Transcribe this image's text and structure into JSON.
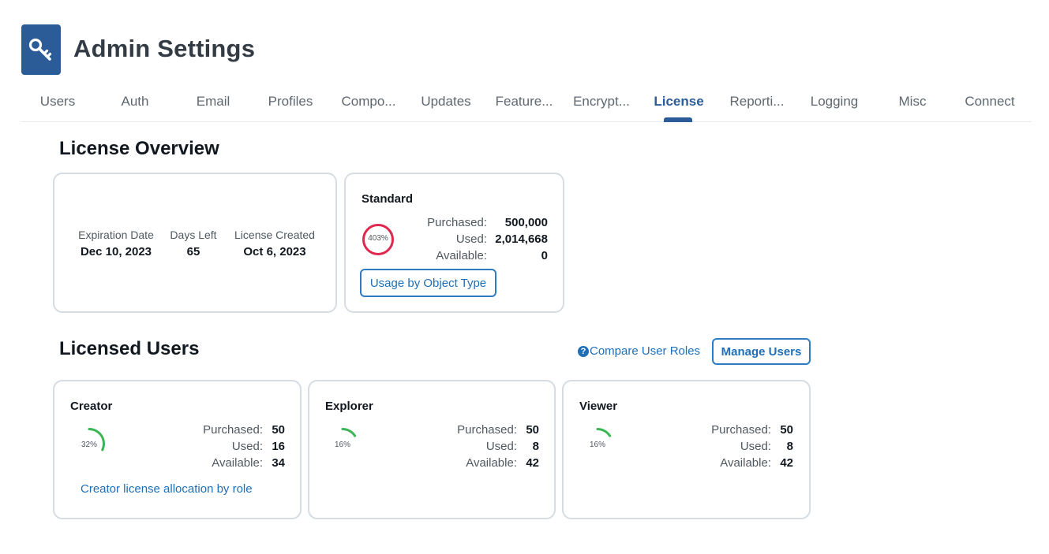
{
  "header": {
    "title": "Admin Settings",
    "icon": "key-icon"
  },
  "tabs": [
    {
      "label": "Users",
      "active": false
    },
    {
      "label": "Auth",
      "active": false
    },
    {
      "label": "Email",
      "active": false
    },
    {
      "label": "Profiles",
      "active": false
    },
    {
      "label": "Compo...",
      "active": false
    },
    {
      "label": "Updates",
      "active": false
    },
    {
      "label": "Feature...",
      "active": false
    },
    {
      "label": "Encrypt...",
      "active": false
    },
    {
      "label": "License",
      "active": true
    },
    {
      "label": "Reporti...",
      "active": false
    },
    {
      "label": "Logging",
      "active": false
    },
    {
      "label": "Misc",
      "active": false
    },
    {
      "label": "Connect",
      "active": false
    }
  ],
  "overview": {
    "title": "License Overview",
    "expiration_label": "Expiration Date",
    "expiration_value": "Dec 10, 2023",
    "days_left_label": "Days Left",
    "days_left_value": "65",
    "created_label": "License Created",
    "created_value": "Oct 6, 2023",
    "standard": {
      "title": "Standard",
      "percent_text": "403%",
      "percent": 403,
      "purchased_label": "Purchased:",
      "purchased_value": "500,000",
      "used_label": "Used:",
      "used_value": "2,014,668",
      "available_label": "Available:",
      "available_value": "0",
      "button_label": "Usage by Object Type"
    }
  },
  "licensed_users": {
    "title": "Licensed Users",
    "compare_label": "Compare User Roles",
    "manage_label": "Manage Users",
    "cards": [
      {
        "title": "Creator",
        "percent_text": "32%",
        "percent": 32,
        "purchased_label": "Purchased:",
        "purchased_value": "50",
        "used_label": "Used:",
        "used_value": "16",
        "available_label": "Available:",
        "available_value": "34",
        "link_label": "Creator license allocation by role"
      },
      {
        "title": "Explorer",
        "percent_text": "16%",
        "percent": 16,
        "purchased_label": "Purchased:",
        "purchased_value": "50",
        "used_label": "Used:",
        "used_value": "8",
        "available_label": "Available:",
        "available_value": "42"
      },
      {
        "title": "Viewer",
        "percent_text": "16%",
        "percent": 16,
        "purchased_label": "Purchased:",
        "purchased_value": "50",
        "used_label": "Used:",
        "used_value": "8",
        "available_label": "Available:",
        "available_value": "42"
      }
    ]
  },
  "colors": {
    "brand": "#2c5c98",
    "over_limit": "#e0284f",
    "ok": "#3cb554",
    "link": "#1f6fb8"
  }
}
